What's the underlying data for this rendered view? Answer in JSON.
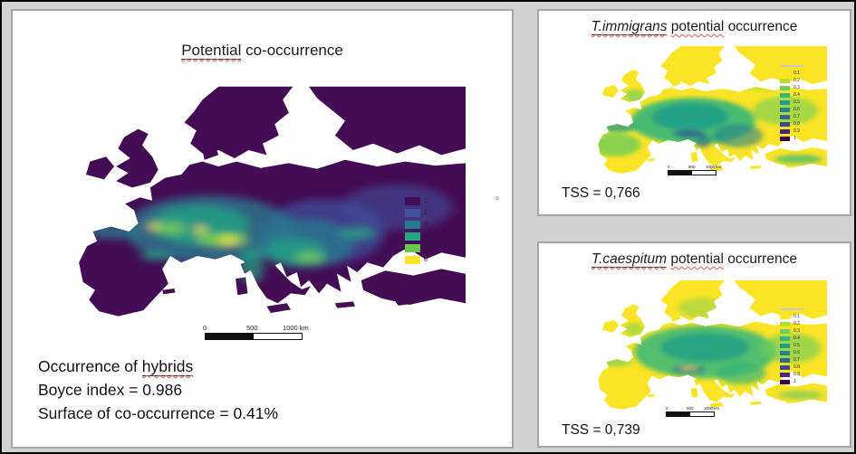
{
  "main_panel": {
    "title": {
      "flagged": "Potential",
      "rest": "co-occurrence"
    },
    "legend": {
      "items": [
        {
          "label": "1",
          "color": "#440c54"
        },
        {
          "label": "2",
          "color": "#44519e"
        },
        {
          "label": "3",
          "color": "#2a788e"
        },
        {
          "label": "4",
          "color": "#22a884"
        },
        {
          "label": "5",
          "color": "#68c84e"
        },
        {
          "label": "6",
          "color": "#f8e52a"
        }
      ]
    },
    "scalebar": {
      "labels": [
        "0",
        "500",
        "1000 km"
      ]
    },
    "stats": {
      "line1_prefix": "Occurrence of",
      "line1_flagged": "hybrids",
      "line2": "Boyce index = 0.986",
      "line3": "Surface of co-occurrence = 0.41%"
    },
    "stray_mark": "s"
  },
  "immigrans_panel": {
    "title": {
      "species": "T.immigrans",
      "flagged": "potential",
      "rest": "occurrence"
    },
    "tss": "TSS = 0,766",
    "scalebar": {
      "labels": [
        "0",
        "500",
        "1000 km"
      ]
    },
    "legend": {
      "items": [
        {
          "label": "0.1",
          "color": "#fde725"
        },
        {
          "label": "0.2",
          "color": "#b5de2b"
        },
        {
          "label": "0.3",
          "color": "#6ece58"
        },
        {
          "label": "0.4",
          "color": "#35b779"
        },
        {
          "label": "0.5",
          "color": "#1f9e89"
        },
        {
          "label": "0.6",
          "color": "#26828e"
        },
        {
          "label": "0.7",
          "color": "#31688e"
        },
        {
          "label": "0.8",
          "color": "#3e4a89"
        },
        {
          "label": "0.9",
          "color": "#482878"
        },
        {
          "label": "1",
          "color": "#440154"
        }
      ]
    }
  },
  "caespitum_panel": {
    "title": {
      "species": "T.caespitum",
      "flagged": "potential",
      "rest": "occurrence"
    },
    "tss": "TSS = 0,739",
    "scalebar": {
      "labels": [
        "0",
        "500",
        "1000 km"
      ]
    },
    "legend": {
      "items": [
        {
          "label": "0.1",
          "color": "#fde725"
        },
        {
          "label": "0.2",
          "color": "#b5de2b"
        },
        {
          "label": "0.3",
          "color": "#6ece58"
        },
        {
          "label": "0.4",
          "color": "#35b779"
        },
        {
          "label": "0.5",
          "color": "#1f9e89"
        },
        {
          "label": "0.6",
          "color": "#26828e"
        },
        {
          "label": "0.7",
          "color": "#31688e"
        },
        {
          "label": "0.8",
          "color": "#3e4a89"
        },
        {
          "label": "0.9",
          "color": "#482878"
        },
        {
          "label": "1",
          "color": "#440154"
        }
      ]
    }
  }
}
